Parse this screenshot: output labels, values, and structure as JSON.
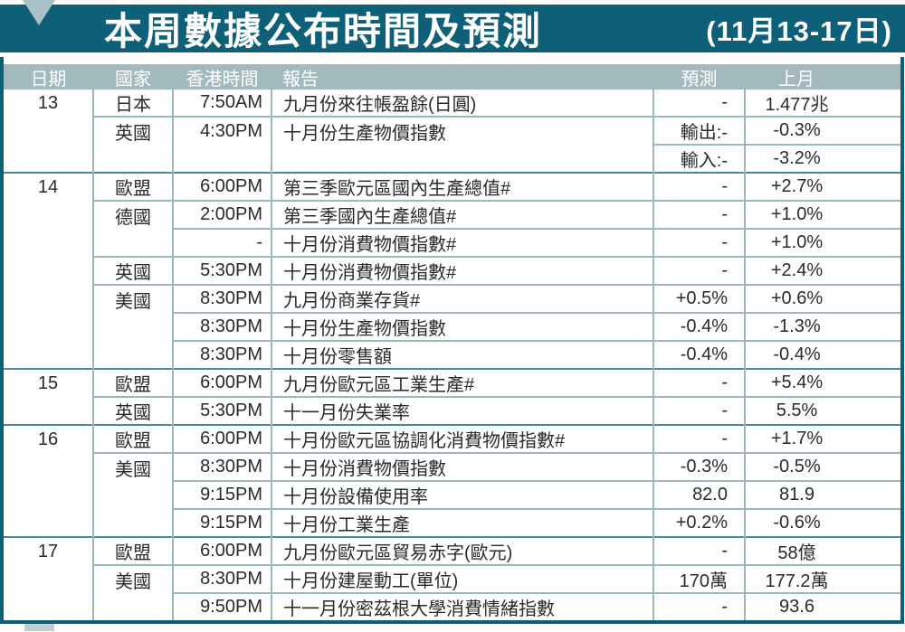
{
  "title": {
    "main": "本周數據公布時間及預測",
    "date_range": "(11月13-17日)"
  },
  "columns": {
    "date": "日期",
    "country": "國家",
    "time": "香港時間",
    "report": "報告",
    "forecast": "預測",
    "previous": "上月"
  },
  "colors": {
    "banner_background": "#0e6078",
    "header_band_background": "#a2b9bd",
    "grid_line_light": "#9fb6bb",
    "grid_line_group": "#48899b",
    "triangle_decoration": "#a9c2c7",
    "text": "#2a2a2a"
  },
  "rows": [
    {
      "date": "13",
      "country": "日本",
      "time": "7:50AM",
      "report": "九月份來往帳盈餘(日圓)",
      "forecast": "-",
      "previous": "1.477兆",
      "sep": "none"
    },
    {
      "date": "",
      "country": "英國",
      "time": "4:30PM",
      "report": "十月份生產物價指數",
      "forecast": "輸出:-",
      "previous": "-0.3%",
      "sep": "country"
    },
    {
      "date": "",
      "country": "",
      "time": "",
      "report": "",
      "forecast": "輸入:-",
      "previous": "-3.2%",
      "sep": "forecast"
    },
    {
      "date": "14",
      "country": "歐盟",
      "time": "6:00PM",
      "report": "第三季歐元區國內生產總值#",
      "forecast": "-",
      "previous": "+2.7%",
      "sep": "group"
    },
    {
      "date": "",
      "country": "德國",
      "time": "2:00PM",
      "report": "第三季國內生產總值#",
      "forecast": "-",
      "previous": "+1.0%",
      "sep": "country"
    },
    {
      "date": "",
      "country": "",
      "time": "-",
      "report": "十月份消費物價指數#",
      "forecast": "-",
      "previous": "+1.0%",
      "sep": "time"
    },
    {
      "date": "",
      "country": "英國",
      "time": "5:30PM",
      "report": "十月份消費物價指數#",
      "forecast": "-",
      "previous": "+2.4%",
      "sep": "country"
    },
    {
      "date": "",
      "country": "美國",
      "time": "8:30PM",
      "report": "九月份商業存貨#",
      "forecast": "+0.5%",
      "previous": "+0.6%",
      "sep": "country"
    },
    {
      "date": "",
      "country": "",
      "time": "8:30PM",
      "report": "十月份生產物價指數",
      "forecast": "-0.4%",
      "previous": "-1.3%",
      "sep": "time"
    },
    {
      "date": "",
      "country": "",
      "time": "8:30PM",
      "report": "十月份零售額",
      "forecast": "-0.4%",
      "previous": "-0.4%",
      "sep": "time"
    },
    {
      "date": "15",
      "country": "歐盟",
      "time": "6:00PM",
      "report": "九月份歐元區工業生產#",
      "forecast": "-",
      "previous": "+5.4%",
      "sep": "group"
    },
    {
      "date": "",
      "country": "英國",
      "time": "5:30PM",
      "report": "十一月份失業率",
      "forecast": "-",
      "previous": "5.5%",
      "sep": "country"
    },
    {
      "date": "16",
      "country": "歐盟",
      "time": "6:00PM",
      "report": "十月份歐元區協調化消費物價指數#",
      "forecast": "-",
      "previous": "+1.7%",
      "sep": "group"
    },
    {
      "date": "",
      "country": "美國",
      "time": "8:30PM",
      "report": "十月份消費物價指數",
      "forecast": "-0.3%",
      "previous": "-0.5%",
      "sep": "country"
    },
    {
      "date": "",
      "country": "",
      "time": "9:15PM",
      "report": "十月份設備使用率",
      "forecast": "82.0",
      "previous": "81.9",
      "sep": "time"
    },
    {
      "date": "",
      "country": "",
      "time": "9:15PM",
      "report": "十月份工業生產",
      "forecast": "+0.2%",
      "previous": "-0.6%",
      "sep": "time"
    },
    {
      "date": "17",
      "country": "歐盟",
      "time": "6:00PM",
      "report": "九月份歐元區貿易赤字(歐元)",
      "forecast": "-",
      "previous": "58億",
      "sep": "group"
    },
    {
      "date": "",
      "country": "美國",
      "time": "8:30PM",
      "report": "十月份建屋動工(單位)",
      "forecast": "170萬",
      "previous": "177.2萬",
      "sep": "country"
    },
    {
      "date": "",
      "country": "",
      "time": "9:50PM",
      "report": "十一月份密茲根大學消費情緒指數",
      "forecast": "-",
      "previous": "93.6",
      "sep": "time"
    }
  ]
}
